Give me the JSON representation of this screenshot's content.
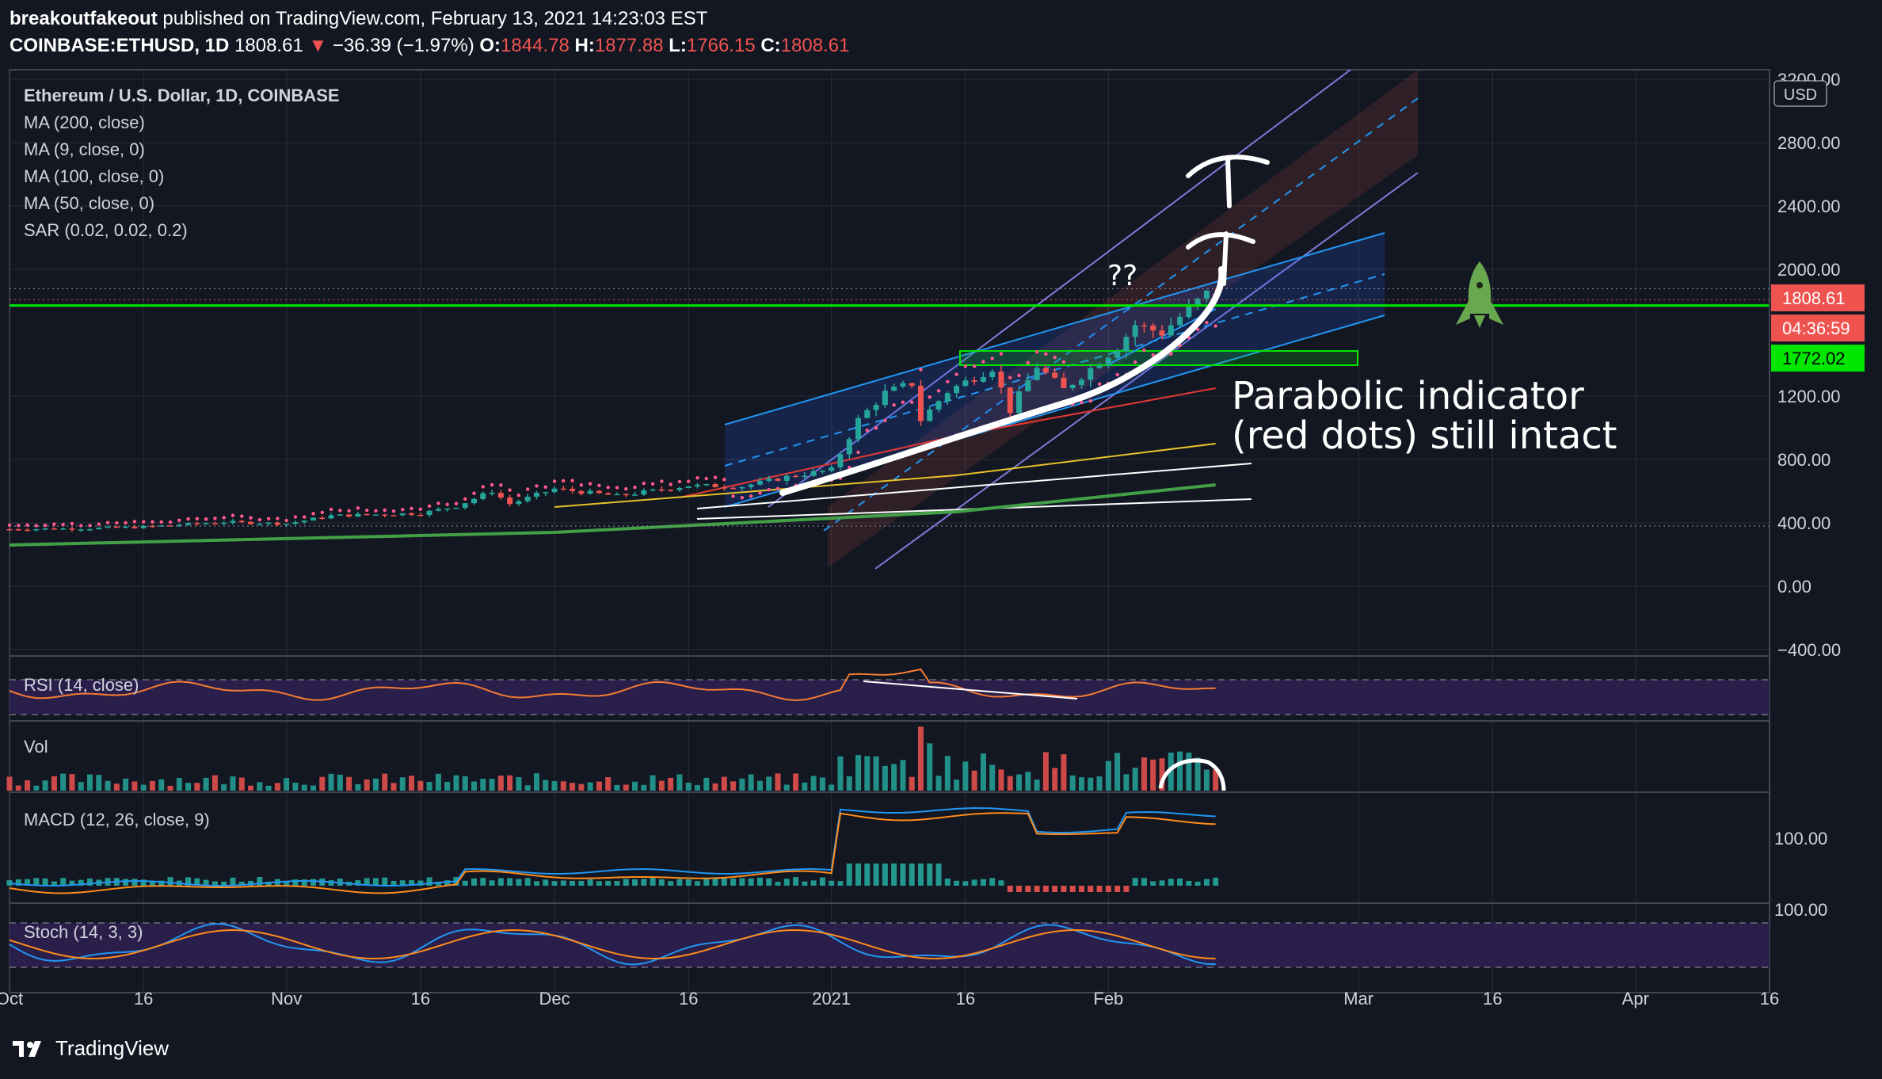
{
  "header": {
    "publisher": "breakoutfakeout",
    "published_text": "published on TradingView.com, February 13, 2021 14:23:03 EST",
    "symbol": "COINBASE:ETHUSD, 1D",
    "last": "1808.61",
    "change": "−36.39 (−1.97%)",
    "open_label": "O:",
    "open": "1844.78",
    "high_label": "H:",
    "high": "1877.88",
    "low_label": "L:",
    "low": "1766.15",
    "close_label": "C:",
    "close": "1808.61"
  },
  "legend": {
    "title": "Ethereum / U.S. Dollar, 1D, COINBASE",
    "ma200": "MA (200, close)",
    "ma9": "MA (9, close, 0)",
    "ma100": "MA (100, close, 0)",
    "ma50": "MA (50, close, 0)",
    "sar": "SAR (0.02, 0.02, 0.2)"
  },
  "price_axis": {
    "currency": "USD",
    "last_price_label": "1808.61",
    "countdown_label": "04:36:59",
    "level_label": "1772.02"
  },
  "panes": {
    "rsi": "RSI (14, close)",
    "vol": "Vol",
    "macd": "MACD (12, 26, close, 9)",
    "stoch": "Stoch (14, 3, 3)",
    "macd_tick_top": "100.00",
    "macd_tick_bottom": "100.00"
  },
  "annotations": {
    "question": "??",
    "note_line1": "Parabolic indicator",
    "note_line2": "(red dots) still intact"
  },
  "footer": {
    "brand": "TradingView"
  },
  "colors": {
    "background": "#131722",
    "up": "#26a69a",
    "down": "#ef5350",
    "horizontal_line": "#00e600",
    "sar_dots": "#ff5a8a",
    "rsi_line": "#f57c33",
    "macd_line": "#2196f3",
    "signal_line": "#ff8c1a",
    "stoch_k": "#2196f3",
    "stoch_d": "#ff8c1a",
    "pane_band": "#2a1e4a"
  },
  "chart_data": {
    "type": "candlestick",
    "title": "Ethereum / U.S. Dollar, 1D, COINBASE",
    "y_ticks": [
      3200,
      2800,
      2400,
      2000,
      1200,
      800,
      400,
      0,
      -400
    ],
    "y_tick_labels": [
      "3200.00",
      "2800.00",
      "2400.00",
      "2000.00",
      "1200.00",
      "800.00",
      "400.00",
      "0.00",
      "−400.00"
    ],
    "ylim": [
      -400,
      3200
    ],
    "x_tick_labels": [
      "Oct",
      "16",
      "Nov",
      "16",
      "Dec",
      "16",
      "2021",
      "16",
      "Feb",
      "Mar",
      "16",
      "Apr",
      "16"
    ],
    "x_ticks": [
      "2020-10-01",
      "2020-10-16",
      "2020-11-01",
      "2020-11-16",
      "2020-12-01",
      "2020-12-16",
      "2021-01-01",
      "2021-01-16",
      "2021-02-01",
      "2021-03-01",
      "2021-03-16",
      "2021-04-01",
      "2021-04-16"
    ],
    "xlim": [
      "2020-10-01",
      "2021-04-16"
    ],
    "horizontal_line": 1772.02,
    "last_price": 1808.61,
    "anchors": [
      [
        "2020-10-01",
        360
      ],
      [
        "2020-10-10",
        365
      ],
      [
        "2020-10-16",
        375
      ],
      [
        "2020-10-25",
        405
      ],
      [
        "2020-11-01",
        395
      ],
      [
        "2020-11-06",
        445
      ],
      [
        "2020-11-16",
        460
      ],
      [
        "2020-11-20",
        505
      ],
      [
        "2020-11-24",
        600
      ],
      [
        "2020-11-26",
        520
      ],
      [
        "2020-12-01",
        615
      ],
      [
        "2020-12-08",
        570
      ],
      [
        "2020-12-16",
        635
      ],
      [
        "2020-12-22",
        630
      ],
      [
        "2020-12-27",
        690
      ],
      [
        "2021-01-01",
        735
      ],
      [
        "2021-01-04",
        1050
      ],
      [
        "2021-01-07",
        1220
      ],
      [
        "2021-01-10",
        1280
      ],
      [
        "2021-01-11",
        1050
      ],
      [
        "2021-01-14",
        1230
      ],
      [
        "2021-01-19",
        1380
      ],
      [
        "2021-01-21",
        1110
      ],
      [
        "2021-01-24",
        1390
      ],
      [
        "2021-01-27",
        1240
      ],
      [
        "2021-02-02",
        1510
      ],
      [
        "2021-02-04",
        1650
      ],
      [
        "2021-02-07",
        1600
      ],
      [
        "2021-02-10",
        1750
      ],
      [
        "2021-02-12",
        1845
      ],
      [
        "2021-02-13",
        1808.61
      ]
    ],
    "moving_averages": {
      "MA (9, close, 0)": [
        [
          "2021-02-01",
          1400
        ],
        [
          "2021-02-13",
          1750
        ]
      ],
      "MA (50, close, 0)": [
        [
          "2020-12-15",
          560
        ],
        [
          "2021-01-15",
          950
        ],
        [
          "2021-02-13",
          1250
        ]
      ],
      "MA (100, close, 0)": [
        [
          "2020-12-01",
          500
        ],
        [
          "2021-01-15",
          700
        ],
        [
          "2021-02-13",
          900
        ]
      ],
      "MA (200, close)": [
        [
          "2020-10-01",
          260
        ],
        [
          "2020-12-01",
          340
        ],
        [
          "2021-01-15",
          470
        ],
        [
          "2021-02-13",
          640
        ]
      ]
    },
    "annotation": "Parabolic indicator (red dots) still intact"
  }
}
